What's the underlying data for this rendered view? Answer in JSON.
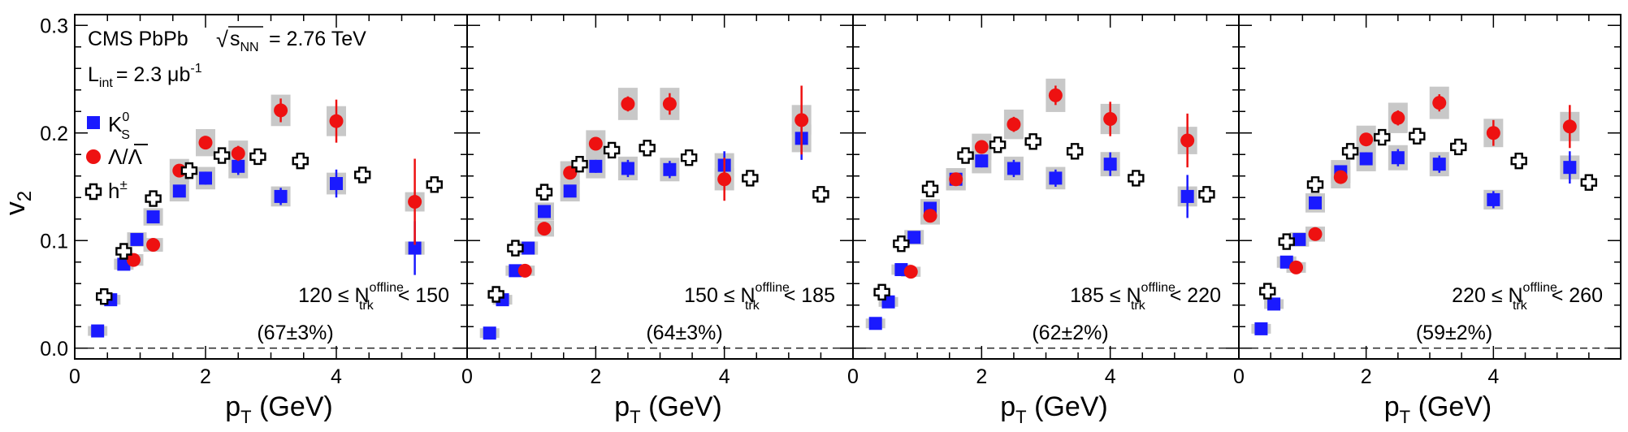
{
  "figure": {
    "header": {
      "experiment": "CMS PbPb",
      "sqrt": "√",
      "s": "s",
      "nn_sub": "NN",
      "energy": "= 2.76 TeV"
    },
    "lumi": {
      "L": "L",
      "sub": "int",
      "value": "= 2.3 μb",
      "sup": "-1"
    },
    "legend": [
      {
        "key": "ks0",
        "label": "K",
        "sub": "S",
        "sup": "0",
        "color": "#1a1aff",
        "marker": "square"
      },
      {
        "key": "lambda",
        "label": "Λ/Λ",
        "color": "#ee1111",
        "marker": "circle"
      },
      {
        "key": "hpm",
        "label": "h",
        "sup": "±",
        "color": "#000000",
        "marker": "cross"
      }
    ],
    "ylabel": {
      "v": "v",
      "sub": "2"
    },
    "xlabel": {
      "p": "p",
      "sub": "T",
      "rest": " (GeV)"
    },
    "selection": {
      "n": "N",
      "sub": "trk",
      "sup": "offline",
      "le": "≤",
      "lt": "<"
    },
    "colors": {
      "band": "#c8c8c8",
      "dashed": "#000000"
    }
  },
  "chart_data": [
    {
      "type": "scatter",
      "panel": 1,
      "bin_low": "120",
      "bin_high": "150",
      "fraction": "(67±3%)",
      "xlim": [
        0,
        6
      ],
      "ylim": [
        -0.01,
        0.31
      ],
      "xticks": [
        "0",
        "2",
        "4"
      ],
      "yticks": [
        "0.0",
        "0.1",
        "0.2",
        "0.3"
      ],
      "series": [
        {
          "name": "Ks0",
          "points": [
            [
              0.35,
              0.016
            ],
            [
              0.55,
              0.045
            ],
            [
              0.75,
              0.078
            ],
            [
              0.95,
              0.101
            ],
            [
              1.2,
              0.122
            ],
            [
              1.6,
              0.146
            ],
            [
              2.0,
              0.158
            ],
            [
              2.5,
              0.169
            ],
            [
              3.15,
              0.141
            ],
            [
              4.0,
              0.153
            ],
            [
              5.2,
              0.093
            ]
          ],
          "yerr": [
            0.003,
            0.003,
            0.003,
            0.003,
            0.003,
            0.004,
            0.006,
            0.008,
            0.008,
            0.013,
            0.025
          ]
        },
        {
          "name": "Lambda",
          "points": [
            [
              0.9,
              0.082
            ],
            [
              1.2,
              0.096
            ],
            [
              1.6,
              0.165
            ],
            [
              2.0,
              0.191
            ],
            [
              2.5,
              0.181
            ],
            [
              3.15,
              0.221
            ],
            [
              4.0,
              0.211
            ],
            [
              5.2,
              0.136
            ]
          ],
          "yerr": [
            0.004,
            0.004,
            0.005,
            0.006,
            0.007,
            0.011,
            0.02,
            0.04
          ]
        },
        {
          "name": "hpm",
          "points": [
            [
              0.45,
              0.048
            ],
            [
              0.75,
              0.09
            ],
            [
              1.2,
              0.139
            ],
            [
              1.75,
              0.165
            ],
            [
              2.25,
              0.179
            ],
            [
              2.8,
              0.178
            ],
            [
              3.45,
              0.174
            ],
            [
              4.4,
              0.161
            ],
            [
              5.5,
              0.152
            ]
          ],
          "yerr": [
            0.002,
            0.002,
            0.002,
            0.002,
            0.002,
            0.002,
            0.003,
            0.003,
            0.004
          ]
        }
      ]
    },
    {
      "type": "scatter",
      "panel": 2,
      "bin_low": "150",
      "bin_high": "185",
      "fraction": "(64±3%)",
      "xlim": [
        0,
        6
      ],
      "ylim": [
        -0.01,
        0.31
      ],
      "xticks": [
        "0",
        "2",
        "4"
      ],
      "yticks": [],
      "series": [
        {
          "name": "Ks0",
          "points": [
            [
              0.35,
              0.014
            ],
            [
              0.55,
              0.045
            ],
            [
              0.75,
              0.072
            ],
            [
              0.95,
              0.093
            ],
            [
              1.2,
              0.127
            ],
            [
              1.6,
              0.146
            ],
            [
              2.0,
              0.169
            ],
            [
              2.5,
              0.167
            ],
            [
              3.15,
              0.166
            ],
            [
              4.0,
              0.17
            ],
            [
              5.2,
              0.195
            ]
          ],
          "yerr": [
            0.003,
            0.003,
            0.003,
            0.003,
            0.004,
            0.004,
            0.006,
            0.008,
            0.008,
            0.013,
            0.02
          ]
        },
        {
          "name": "Lambda",
          "points": [
            [
              0.9,
              0.072
            ],
            [
              1.2,
              0.111
            ],
            [
              1.6,
              0.163
            ],
            [
              2.0,
              0.19
            ],
            [
              2.5,
              0.227
            ],
            [
              3.15,
              0.227
            ],
            [
              4.0,
              0.157
            ],
            [
              5.2,
              0.212
            ]
          ],
          "yerr": [
            0.004,
            0.004,
            0.005,
            0.006,
            0.007,
            0.01,
            0.02,
            0.032
          ]
        },
        {
          "name": "hpm",
          "points": [
            [
              0.45,
              0.05
            ],
            [
              0.75,
              0.093
            ],
            [
              1.2,
              0.145
            ],
            [
              1.75,
              0.171
            ],
            [
              2.25,
              0.184
            ],
            [
              2.8,
              0.186
            ],
            [
              3.45,
              0.177
            ],
            [
              4.4,
              0.158
            ],
            [
              5.5,
              0.143
            ]
          ],
          "yerr": [
            0.002,
            0.002,
            0.002,
            0.002,
            0.002,
            0.002,
            0.003,
            0.003,
            0.004
          ]
        }
      ]
    },
    {
      "type": "scatter",
      "panel": 3,
      "bin_low": "185",
      "bin_high": "220",
      "fraction": "(62±2%)",
      "xlim": [
        0,
        6
      ],
      "ylim": [
        -0.01,
        0.31
      ],
      "xticks": [
        "0",
        "2",
        "4"
      ],
      "yticks": [],
      "series": [
        {
          "name": "Ks0",
          "points": [
            [
              0.35,
              0.023
            ],
            [
              0.55,
              0.043
            ],
            [
              0.75,
              0.073
            ],
            [
              0.95,
              0.103
            ],
            [
              1.2,
              0.13
            ],
            [
              1.6,
              0.157
            ],
            [
              2.0,
              0.174
            ],
            [
              2.5,
              0.167
            ],
            [
              3.15,
              0.158
            ],
            [
              4.0,
              0.171
            ],
            [
              5.2,
              0.141
            ]
          ],
          "yerr": [
            0.003,
            0.003,
            0.003,
            0.003,
            0.004,
            0.004,
            0.006,
            0.008,
            0.008,
            0.011,
            0.02
          ]
        },
        {
          "name": "Lambda",
          "points": [
            [
              0.9,
              0.071
            ],
            [
              1.2,
              0.123
            ],
            [
              1.6,
              0.157
            ],
            [
              2.0,
              0.187
            ],
            [
              2.5,
              0.208
            ],
            [
              3.15,
              0.235
            ],
            [
              4.0,
              0.213
            ],
            [
              5.2,
              0.193
            ]
          ],
          "yerr": [
            0.004,
            0.004,
            0.005,
            0.006,
            0.007,
            0.009,
            0.016,
            0.025
          ]
        },
        {
          "name": "hpm",
          "points": [
            [
              0.45,
              0.052
            ],
            [
              0.75,
              0.097
            ],
            [
              1.2,
              0.148
            ],
            [
              1.75,
              0.179
            ],
            [
              2.25,
              0.189
            ],
            [
              2.8,
              0.192
            ],
            [
              3.45,
              0.183
            ],
            [
              4.4,
              0.158
            ],
            [
              5.5,
              0.143
            ]
          ],
          "yerr": [
            0.002,
            0.002,
            0.002,
            0.002,
            0.002,
            0.002,
            0.003,
            0.003,
            0.004
          ]
        }
      ]
    },
    {
      "type": "scatter",
      "panel": 4,
      "bin_low": "220",
      "bin_high": "260",
      "fraction": "(59±2%)",
      "xlim": [
        0,
        6
      ],
      "ylim": [
        -0.01,
        0.31
      ],
      "xticks": [
        "0",
        "2",
        "4"
      ],
      "yticks": [],
      "series": [
        {
          "name": "Ks0",
          "points": [
            [
              0.35,
              0.018
            ],
            [
              0.55,
              0.041
            ],
            [
              0.75,
              0.08
            ],
            [
              0.95,
              0.101
            ],
            [
              1.2,
              0.135
            ],
            [
              1.6,
              0.164
            ],
            [
              2.0,
              0.176
            ],
            [
              2.5,
              0.177
            ],
            [
              3.15,
              0.171
            ],
            [
              4.0,
              0.138
            ],
            [
              5.2,
              0.168
            ]
          ],
          "yerr": [
            0.003,
            0.003,
            0.003,
            0.003,
            0.004,
            0.004,
            0.006,
            0.008,
            0.008,
            0.008,
            0.015
          ]
        },
        {
          "name": "Lambda",
          "points": [
            [
              0.9,
              0.075
            ],
            [
              1.2,
              0.106
            ],
            [
              1.6,
              0.159
            ],
            [
              2.0,
              0.194
            ],
            [
              2.5,
              0.214
            ],
            [
              3.15,
              0.228
            ],
            [
              4.0,
              0.2
            ],
            [
              5.2,
              0.206
            ]
          ],
          "yerr": [
            0.004,
            0.004,
            0.005,
            0.006,
            0.007,
            0.008,
            0.012,
            0.02
          ]
        },
        {
          "name": "hpm",
          "points": [
            [
              0.45,
              0.053
            ],
            [
              0.75,
              0.099
            ],
            [
              1.2,
              0.152
            ],
            [
              1.75,
              0.183
            ],
            [
              2.25,
              0.196
            ],
            [
              2.8,
              0.197
            ],
            [
              3.45,
              0.187
            ],
            [
              4.4,
              0.174
            ],
            [
              5.5,
              0.154
            ]
          ],
          "yerr": [
            0.002,
            0.002,
            0.002,
            0.002,
            0.002,
            0.002,
            0.003,
            0.003,
            0.004
          ]
        }
      ]
    }
  ]
}
